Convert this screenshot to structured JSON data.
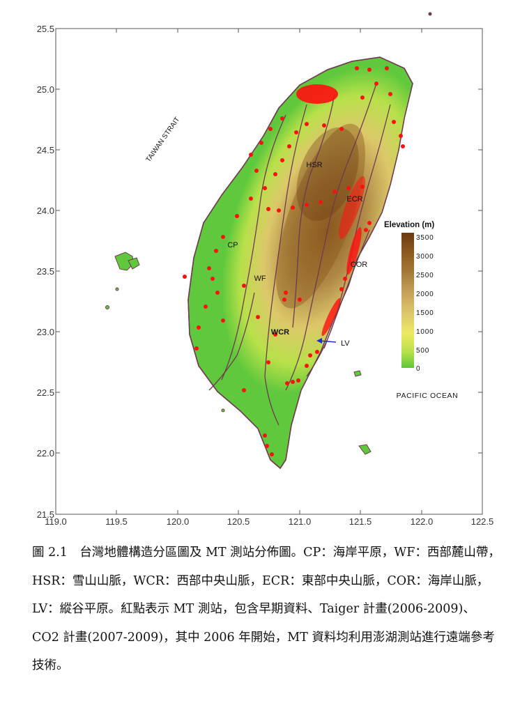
{
  "map": {
    "x_ticks": [
      "119.0",
      "119.5",
      "120.0",
      "120.5",
      "121.0",
      "121.5",
      "122.0",
      "122.5"
    ],
    "y_ticks": [
      "25.5",
      "25.0",
      "24.5",
      "24.0",
      "23.5",
      "23.0",
      "22.5",
      "22.0",
      "21.5"
    ],
    "labels": {
      "strait": "TAIWAN STRAIT",
      "ocean": "PACIFIC OCEAN",
      "hsr": "HSR",
      "ecr": "ECR",
      "cp": "CP",
      "cor": "COR",
      "wf": "WF",
      "wcr": "WCR",
      "lv": "LV"
    },
    "legend": {
      "title": "Elevation (m)",
      "ticks": [
        "3500",
        "3000",
        "2500",
        "2000",
        "1500",
        "1000",
        "500",
        "0"
      ],
      "colors": [
        "#6b3a10",
        "#8c5a20",
        "#a67c3a",
        "#c7a35a",
        "#dcc86a",
        "#ecea62",
        "#b8e04a",
        "#5fc83c"
      ]
    },
    "colors": {
      "lowland": "#5fc83c",
      "station": "#ff1010",
      "lv_arrow": "#1f2bd8",
      "region_line": "#6e3a50"
    }
  },
  "caption": {
    "text": "圖 2.1　台灣地體構造分區圖及 MT 測站分佈圖。CP：海岸平原，WF：西部麓山帶，HSR：雪山山脈，WCR：西部中央山脈，ECR：東部中央山脈，COR：海岸山脈，　LV：縱谷平原。紅點表示 MT 測站，包含早期資料、Taiger 計畫(2006-2009)、CO2 計畫(2007-2009)，其中 2006 年開始，MT 資料均利用澎湖測站進行遠端參考技術。"
  }
}
